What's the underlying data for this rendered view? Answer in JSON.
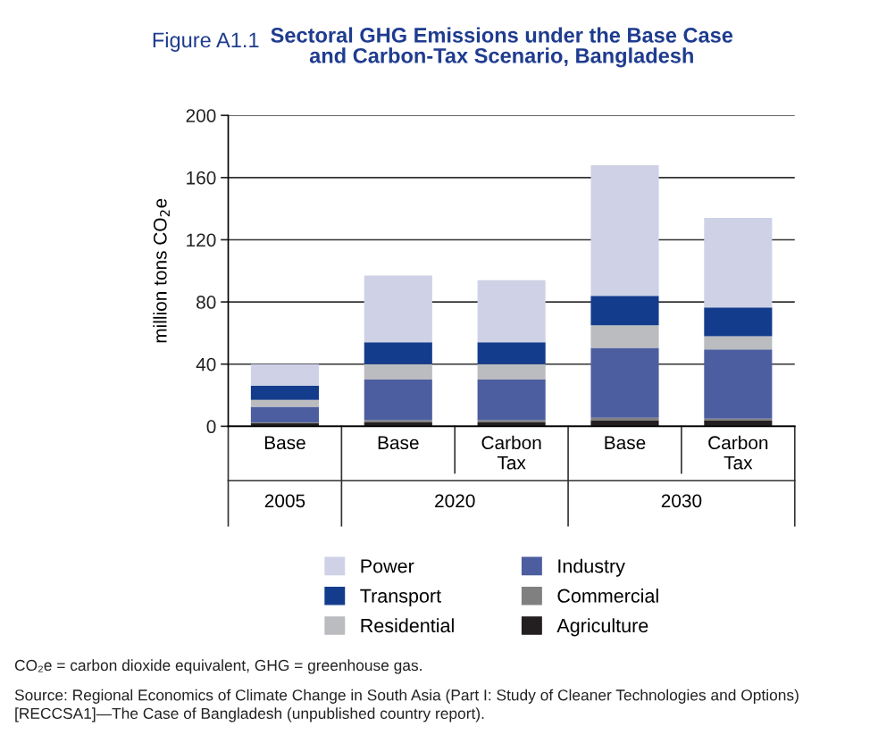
{
  "chart_data": {
    "type": "bar",
    "stacked": true,
    "title": "Figure A1.1",
    "subtitle": "Sectoral GHG Emissions under the Base Case\nand Carbon-Tax Scenario, Bangladesh",
    "ylabel": "million tons CO$_{2}$e",
    "categories": [
      "Base",
      "Base",
      "Carbon\nTax",
      "Base",
      "Carbon\nTax"
    ],
    "series": [
      {
        "name": "Agriculture",
        "color": "#231f20",
        "values": [
          2,
          2.5,
          2.5,
          4,
          4
        ]
      },
      {
        "name": "Commercial",
        "color": "#808080",
        "values": [
          0.5,
          1.5,
          1.5,
          1.5,
          1
        ]
      },
      {
        "name": "Industry",
        "color": "#4d5ea0",
        "values": [
          10,
          26,
          26,
          45,
          44.5
        ]
      },
      {
        "name": "Residential",
        "color": "#bbbcc0",
        "values": [
          4.5,
          10,
          10,
          14.5,
          8.5
        ]
      },
      {
        "name": "Transport",
        "color": "#143c8c",
        "values": [
          9,
          14,
          14,
          19,
          18.5
        ]
      },
      {
        "name": "Power",
        "color": "#cfd1e6",
        "values": [
          14,
          43,
          40,
          84,
          57.5
        ]
      }
    ],
    "ylim": [
      0,
      200
    ],
    "yticks": [
      0,
      40,
      80,
      120,
      160,
      200
    ],
    "grid": "y",
    "legend": "bottom",
    "annotations": [
      "2005",
      "2020",
      "2030",
      "CO₂e = carbon dioxide equivalent, GHG = greenhouse gas.",
      "Source: Regional Economics of Climate Change in South Asia (Part I: Study of Cleaner Technologies and Options) [RECCSA1]—The Case of Bangladesh (unpublished country report)."
    ]
  }
}
